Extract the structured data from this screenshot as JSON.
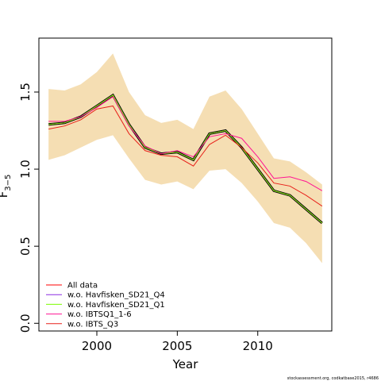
{
  "chart_data": {
    "type": "line",
    "xlabel": "Year",
    "ylabel": "F",
    "ylabel_subscript": "3−5",
    "xlim": [
      1996.4,
      2014.6
    ],
    "ylim": [
      -0.05,
      1.85
    ],
    "x_ticks": [
      2000,
      2005,
      2010
    ],
    "y_ticks": [
      0.0,
      0.5,
      1.0,
      1.5
    ],
    "x_tick_labels": [
      "2000",
      "2005",
      "2010"
    ],
    "y_tick_labels": [
      "0.0",
      "0.5",
      "1.0",
      "1.5"
    ],
    "grid": false,
    "legend_position": "bottom-left",
    "x": [
      1997,
      1998,
      1999,
      2000,
      2001,
      2002,
      2003,
      2004,
      2005,
      2006,
      2007,
      2008,
      2009,
      2010,
      2011,
      2012,
      2013,
      2014
    ],
    "band": {
      "color": "#f5deb3",
      "upper": [
        1.52,
        1.51,
        1.55,
        1.63,
        1.75,
        1.5,
        1.35,
        1.3,
        1.32,
        1.26,
        1.47,
        1.51,
        1.39,
        1.23,
        1.07,
        1.05,
        0.98,
        0.9
      ],
      "lower": [
        1.06,
        1.09,
        1.14,
        1.19,
        1.22,
        1.07,
        0.93,
        0.9,
        0.92,
        0.87,
        0.99,
        1.0,
        0.91,
        0.79,
        0.65,
        0.62,
        0.52,
        0.39
      ]
    },
    "series": [
      {
        "name": "All data",
        "color": "#ff0000",
        "values": [
          1.29,
          1.3,
          1.34,
          1.41,
          1.48,
          1.29,
          1.14,
          1.1,
          1.11,
          1.06,
          1.23,
          1.25,
          1.14,
          1.0,
          0.86,
          0.83,
          0.74,
          0.65
        ]
      },
      {
        "name": "w.o. Havfisken_SD21_Q4",
        "color": "#8a2be2",
        "values": [
          1.29,
          1.3,
          1.34,
          1.41,
          1.48,
          1.29,
          1.14,
          1.1,
          1.11,
          1.06,
          1.23,
          1.25,
          1.14,
          1.0,
          0.86,
          0.83,
          0.74,
          0.65
        ]
      },
      {
        "name": "w.o. Havfisken_SD21_Q1",
        "color": "#7cfc00",
        "values": [
          1.29,
          1.3,
          1.34,
          1.41,
          1.48,
          1.29,
          1.14,
          1.1,
          1.11,
          1.06,
          1.23,
          1.25,
          1.14,
          1.0,
          0.86,
          0.83,
          0.74,
          0.65
        ]
      },
      {
        "name": "w.o. IBTSQ1_1-6",
        "color": "#ff1493",
        "values": [
          1.31,
          1.31,
          1.34,
          1.4,
          1.47,
          1.28,
          1.15,
          1.1,
          1.12,
          1.08,
          1.21,
          1.23,
          1.2,
          1.08,
          0.94,
          0.95,
          0.92,
          0.86
        ]
      },
      {
        "name": "w.o. IBTS_Q3",
        "color": "#e8201a",
        "values": [
          1.26,
          1.28,
          1.32,
          1.39,
          1.41,
          1.23,
          1.12,
          1.09,
          1.08,
          1.02,
          1.16,
          1.22,
          1.14,
          1.04,
          0.91,
          0.89,
          0.83,
          0.76
        ]
      }
    ],
    "main_line": {
      "color": "#000000",
      "values": [
        1.29,
        1.3,
        1.34,
        1.41,
        1.48,
        1.29,
        1.14,
        1.1,
        1.11,
        1.06,
        1.23,
        1.25,
        1.14,
        1.0,
        0.86,
        0.83,
        0.74,
        0.65
      ]
    }
  },
  "footer": {
    "text": "stockassessment.org, codkatbase2015, r4686"
  }
}
